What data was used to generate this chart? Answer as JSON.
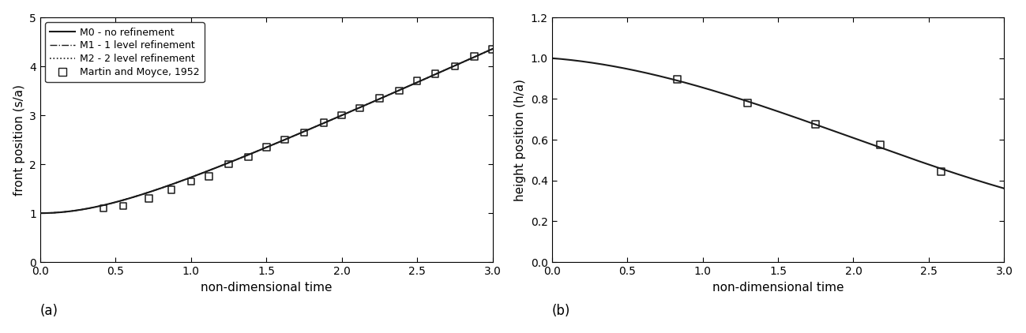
{
  "panel_a": {
    "xlabel": "non-dimensional time",
    "ylabel": "front position (s/a)",
    "label": "(a)",
    "xlim": [
      0.0,
      3.0
    ],
    "ylim": [
      0.0,
      5.0
    ],
    "xticks": [
      0.0,
      0.5,
      1.0,
      1.5,
      2.0,
      2.5,
      3.0
    ],
    "yticks": [
      0.0,
      1.0,
      2.0,
      3.0,
      4.0,
      5.0
    ],
    "curve_color": "#1a1a1a",
    "scatter_x": [
      0.42,
      0.55,
      0.72,
      0.87,
      1.0,
      1.12,
      1.25,
      1.38,
      1.5,
      1.62,
      1.75,
      1.88,
      2.0,
      2.12,
      2.25,
      2.38,
      2.5,
      2.62,
      2.75,
      2.88,
      3.0
    ],
    "scatter_y": [
      1.1,
      1.15,
      1.3,
      1.48,
      1.65,
      1.75,
      2.0,
      2.15,
      2.35,
      2.5,
      2.65,
      2.85,
      3.0,
      3.15,
      3.35,
      3.5,
      3.7,
      3.85,
      4.0,
      4.2,
      4.35
    ]
  },
  "panel_b": {
    "xlabel": "non-dimensional time",
    "ylabel": "height position (h/a)",
    "label": "(b)",
    "xlim": [
      0.0,
      3.0
    ],
    "ylim": [
      0.0,
      1.2
    ],
    "xticks": [
      0.0,
      0.5,
      1.0,
      1.5,
      2.0,
      2.5,
      3.0
    ],
    "yticks": [
      0.0,
      0.2,
      0.4,
      0.6,
      0.8,
      1.0,
      1.2
    ],
    "curve_color": "#1a1a1a",
    "scatter_x": [
      0.83,
      1.3,
      1.75,
      2.18,
      2.58
    ],
    "scatter_y": [
      0.895,
      0.78,
      0.675,
      0.575,
      0.445
    ]
  },
  "legend_entries": [
    {
      "label": "M0 - no refinement",
      "linestyle": "-",
      "lw": 1.5
    },
    {
      "label": "M1 - 1 level refinement",
      "linestyle": "-.",
      "lw": 1.0
    },
    {
      "label": "M2 - 2 level refinement",
      "linestyle": ":",
      "lw": 1.2
    },
    {
      "label": "Martin and Moyce, 1952"
    }
  ],
  "line_color": "#1a1a1a",
  "background_color": "#ffffff"
}
